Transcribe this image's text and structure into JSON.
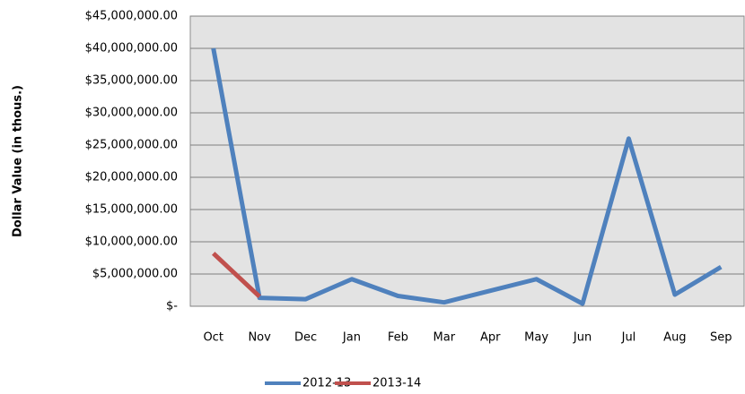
{
  "chart_data": {
    "type": "line",
    "y_label": "Dollar Value (in thous.)",
    "categories": [
      "Oct",
      "Nov",
      "Dec",
      "Jan",
      "Feb",
      "Mar",
      "Apr",
      "May",
      "Jun",
      "Jul",
      "Aug",
      "Sep"
    ],
    "series": [
      {
        "name": "2012-13",
        "color": "#4f81bd",
        "values": [
          40000000,
          1300000,
          1100000,
          4200000,
          1600000,
          600000,
          2400000,
          4200000,
          400000,
          26000000,
          1800000,
          6100000
        ]
      },
      {
        "name": "2013-14",
        "color": "#c0504d",
        "values": [
          8200000,
          1500000,
          null,
          null,
          null,
          null,
          null,
          null,
          null,
          null,
          null,
          null
        ]
      }
    ],
    "ylim": [
      0,
      45000000
    ],
    "yticks": [
      {
        "value": 0,
        "label": "$-"
      },
      {
        "value": 5000000,
        "label": "$5,000,000.00"
      },
      {
        "value": 10000000,
        "label": "$10,000,000.00"
      },
      {
        "value": 15000000,
        "label": "$15,000,000.00"
      },
      {
        "value": 20000000,
        "label": "$20,000,000.00"
      },
      {
        "value": 25000000,
        "label": "$25,000,000.00"
      },
      {
        "value": 30000000,
        "label": "$30,000,000.00"
      },
      {
        "value": 35000000,
        "label": "$35,000,000.00"
      },
      {
        "value": 40000000,
        "label": "$40,000,000.00"
      },
      {
        "value": 45000000,
        "label": "$45,000,000.00"
      }
    ],
    "grid": true,
    "legend": "bottom"
  }
}
